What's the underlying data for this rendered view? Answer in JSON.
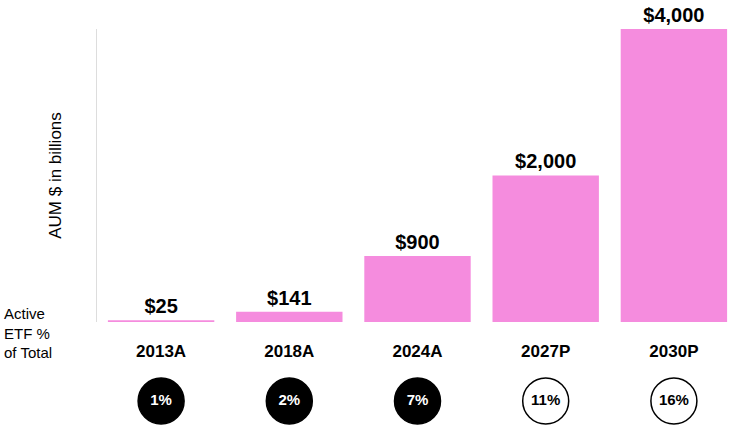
{
  "chart_data": {
    "type": "bar",
    "y_label": "AUM $ in billions",
    "categories": [
      "2013A",
      "2018A",
      "2024A",
      "2027P",
      "2030P"
    ],
    "values": [
      25,
      141,
      900,
      2000,
      4000
    ],
    "value_labels": [
      "$25",
      "$141",
      "$900",
      "$2,000",
      "$4,000"
    ],
    "data_labels": true,
    "color": "#f58cde",
    "ylim": [
      0,
      4000
    ],
    "yticks": [],
    "tick_labels": "x",
    "grid": false,
    "share_title": "Active\nETF %\nof Total",
    "share_values": [
      1,
      2,
      7,
      11,
      16
    ],
    "share_labels": [
      "1%",
      "2%",
      "7%",
      "11%",
      "16%"
    ],
    "share_colors": [
      "#000000",
      "#000000",
      "#000000",
      "#ffffff",
      "#ffffff"
    ]
  }
}
